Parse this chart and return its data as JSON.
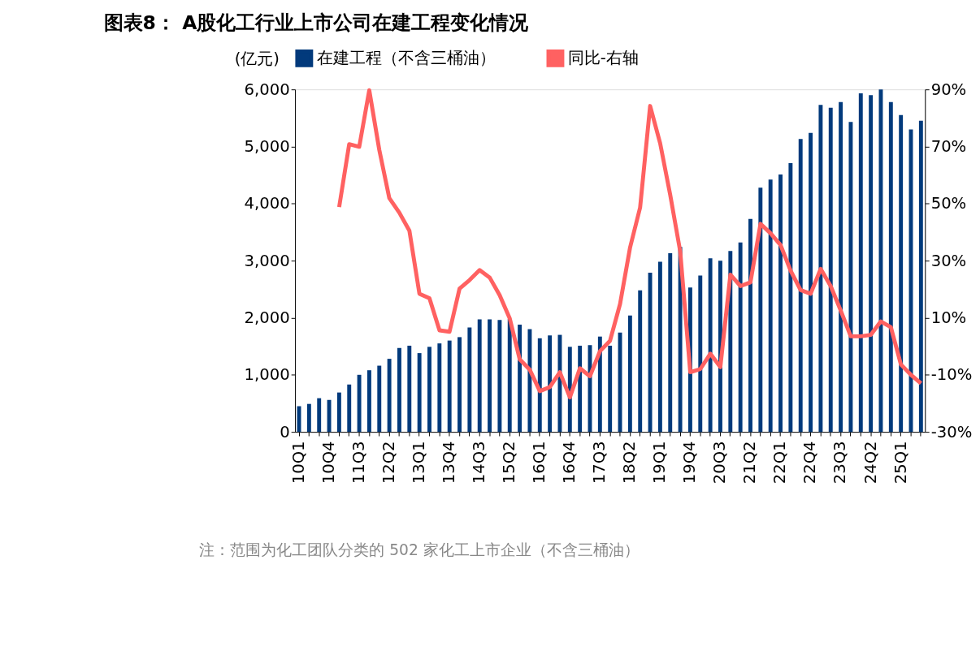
{
  "chart_data": {
    "type": "bar",
    "title": "图表8： A股化工行业上市公司在建工程变化情况",
    "ylabel": "(亿元)",
    "categories": [
      "10Q1",
      null,
      null,
      "10Q4",
      null,
      null,
      "11Q3",
      null,
      null,
      "12Q2",
      null,
      null,
      "13Q1",
      null,
      null,
      "13Q4",
      null,
      null,
      "14Q3",
      null,
      null,
      "15Q2",
      null,
      null,
      "16Q1",
      null,
      null,
      "16Q4",
      null,
      null,
      "17Q3",
      null,
      null,
      "18Q2",
      null,
      null,
      "19Q1",
      null,
      null,
      "19Q4",
      null,
      null,
      "20Q3",
      null,
      null,
      "21Q2",
      null,
      null,
      "22Q1",
      null,
      null,
      "22Q4",
      null,
      null,
      "23Q3",
      null,
      null,
      "24Q2",
      null,
      null,
      "25Q1",
      null,
      null
    ],
    "series": [
      {
        "name": "在建工程（不含三桶油）",
        "color": "#023a7c",
        "values": [
          450,
          490,
          590,
          560,
          690,
          830,
          1000,
          1080,
          1160,
          1280,
          1470,
          1510,
          1380,
          1490,
          1550,
          1600,
          1660,
          1830,
          1970,
          1970,
          1960,
          1980,
          1880,
          1800,
          1640,
          1690,
          1700,
          1490,
          1510,
          1520,
          1670,
          1510,
          1740,
          2040,
          2480,
          2790,
          2980,
          3130,
          3240,
          2530,
          2740,
          3040,
          3000,
          3170,
          3320,
          3730,
          4280,
          4420,
          4510,
          4710,
          5130,
          5240,
          5730,
          5680,
          5780,
          5430,
          5930,
          5900,
          6000,
          5780,
          5550,
          5300,
          5450
        ]
      },
      {
        "name": "同比-右轴",
        "type": "line",
        "axis": "y2",
        "color": "#ff6161",
        "values": [
          null,
          null,
          null,
          null,
          48.8,
          70.8,
          69.9,
          89.7,
          68.8,
          51.9,
          46.8,
          40.5,
          18.4,
          16.8,
          5.6,
          5.1,
          20.2,
          23.2,
          26.7,
          24.1,
          17.9,
          9.8,
          -4.6,
          -8.2,
          -15.7,
          -14.3,
          -9.1,
          -17.9,
          -7.7,
          -10.5,
          -1.7,
          1.9,
          14.8,
          34.6,
          48.6,
          84.2,
          71.1,
          53.1,
          33.2,
          -9.1,
          -8.0,
          -2.6,
          -7.3,
          25.1,
          21.1,
          22.4,
          42.9,
          39.6,
          35.5,
          26.5,
          19.7,
          18.4,
          27.1,
          21.1,
          12.5,
          3.5,
          3.5,
          4.0,
          8.7,
          6.7,
          -6.4,
          -10.0,
          -13.0
        ]
      }
    ],
    "ylim": [
      0,
      6000
    ],
    "yticks": [
      0,
      {
        "value": 1000,
        "label": "1,000"
      },
      {
        "value": 2000,
        "label": "2,000"
      },
      {
        "value": 3000,
        "label": "3,000"
      },
      {
        "value": 4000,
        "label": "4,000"
      },
      {
        "value": 5000,
        "label": "5,000"
      },
      {
        "value": 6000,
        "label": "6,000"
      }
    ],
    "y2lim": [
      -30,
      90
    ],
    "y2ticks": [
      {
        "value": -30,
        "label": "-30%"
      },
      {
        "value": -10,
        "label": "-10%"
      },
      {
        "value": 10,
        "label": "10%"
      },
      {
        "value": 30,
        "label": "30%"
      },
      {
        "value": 50,
        "label": "50%"
      },
      {
        "value": 70,
        "label": "70%"
      },
      {
        "value": 90,
        "label": "90%"
      }
    ],
    "legend": "top",
    "grid": false,
    "marker": "none",
    "line_style": "solid",
    "annotations": [
      "注：范围为化工团队分类的 502 家化工上市企业（不含三桶油）"
    ]
  }
}
